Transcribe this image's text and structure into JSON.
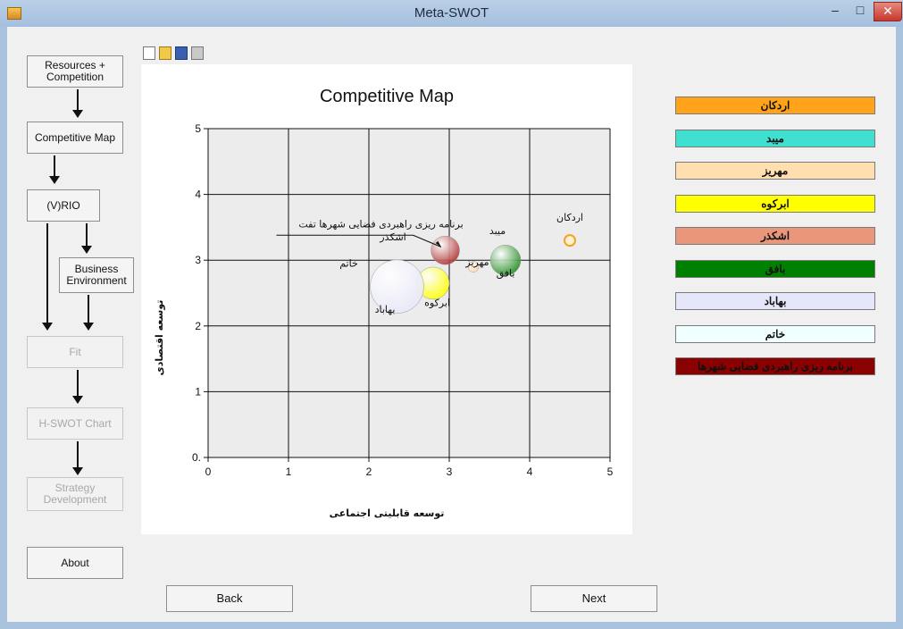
{
  "window": {
    "title": "Meta-SWOT"
  },
  "nav": {
    "resources": "Resources + Competition",
    "competitive_map": "Competitive Map",
    "vrio": "(V)RIO",
    "business_env": "Business Environment",
    "fit": "Fit",
    "hswot": "H-SWOT Chart",
    "strategy": "Strategy Development",
    "about": "About"
  },
  "buttons": {
    "back": "Back",
    "next": "Next"
  },
  "chart_data": {
    "type": "scatter",
    "title": "Competitive Map",
    "xlabel": "توسعه قابلیتی اجتماعی",
    "ylabel": "توسعه اقتصادی",
    "xlim": [
      0,
      5
    ],
    "ylim": [
      0,
      5
    ],
    "xticks": [
      "0",
      "1",
      "2",
      "3",
      "4",
      "5"
    ],
    "yticks": [
      "0.",
      "1",
      "2",
      "3",
      "4",
      "5"
    ],
    "grid": true,
    "series": [
      {
        "name": "اردکان",
        "x": 4.5,
        "y": 3.3,
        "size": 6,
        "color": "#f4a31e",
        "hollow": true
      },
      {
        "name": "میبد",
        "x": 3.7,
        "y": 3.55,
        "size": 0,
        "color": "#3fd2c7"
      },
      {
        "name": "مهریز",
        "x": 3.3,
        "y": 2.9,
        "size": 6,
        "color": "#ffd9a8"
      },
      {
        "name": "ابرکوه",
        "x": 2.8,
        "y": 2.65,
        "size": 18,
        "color": "#ffff00"
      },
      {
        "name": "اشکذر",
        "x": 2.3,
        "y": 3.35,
        "size": 0,
        "color": "#e9967a"
      },
      {
        "name": "بافق",
        "x": 3.7,
        "y": 3.0,
        "size": 17,
        "color": "#228b22"
      },
      {
        "name": "بهاباد",
        "x": 2.35,
        "y": 2.6,
        "size": 30,
        "color": "#e8e8f8"
      },
      {
        "name": "خاتم",
        "x": 2.0,
        "y": 2.95,
        "size": 0,
        "color": "#f0ffff"
      },
      {
        "name": "برنامه ریزی راهبردی فضایی شهرها تفت",
        "x": 2.95,
        "y": 3.15,
        "size": 16,
        "color": "#b03030"
      }
    ],
    "point_labels": [
      {
        "text": "اردکان",
        "x": 4.5,
        "y": 3.6
      },
      {
        "text": "میبد",
        "x": 3.6,
        "y": 3.4
      },
      {
        "text": "مهریز",
        "x": 3.35,
        "y": 2.92
      },
      {
        "text": "بافق",
        "x": 3.7,
        "y": 2.75
      },
      {
        "text": "ابرکوه",
        "x": 2.85,
        "y": 2.3
      },
      {
        "text": "اشکذر",
        "x": 2.3,
        "y": 3.3
      },
      {
        "text": "خاتم",
        "x": 1.75,
        "y": 2.9
      },
      {
        "text": "بهاباد",
        "x": 2.2,
        "y": 2.2
      },
      {
        "text": "برنامه ریزی راهبردی فضایی شهرها تفت",
        "x": 2.15,
        "y": 3.5
      }
    ],
    "legend": [
      {
        "label": "اردکان",
        "color": "#ffa31a"
      },
      {
        "label": "میبد",
        "color": "#40e0d0"
      },
      {
        "label": "مهریز",
        "color": "#ffdeaf"
      },
      {
        "label": "ابرکوه",
        "color": "#ffff00"
      },
      {
        "label": "اشکذر",
        "color": "#e9967a"
      },
      {
        "label": "بافق",
        "color": "#008000"
      },
      {
        "label": "بهاباد",
        "color": "#e6e6fa"
      },
      {
        "label": "خاتم",
        "color": "#f0ffff"
      },
      {
        "label": "برنامه ریزی راهبردی فضایی شهرها",
        "color": "#8b0000"
      }
    ]
  }
}
